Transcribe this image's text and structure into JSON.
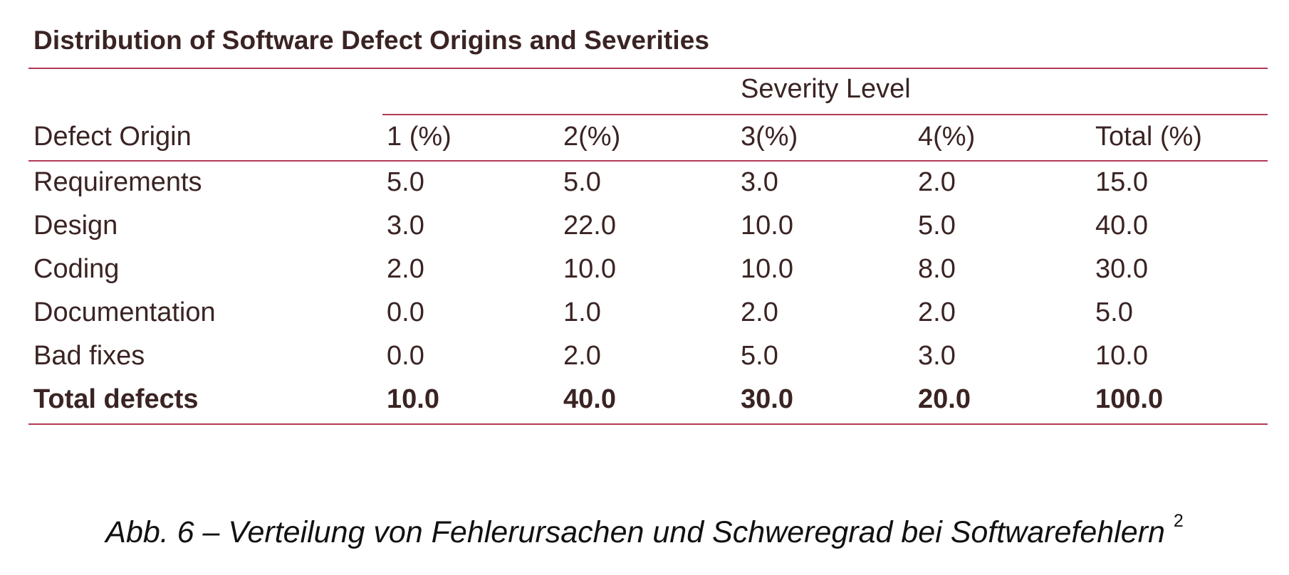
{
  "table": {
    "title": "Distribution of Software Defect Origins and Severities",
    "group_header": "Severity Level",
    "headers": [
      "Defect Origin",
      "1 (%)",
      "2(%)",
      "3(%)",
      "4(%)",
      "Total (%)"
    ],
    "rows": [
      [
        "Requirements",
        "5.0",
        "5.0",
        "3.0",
        "2.0",
        "15.0"
      ],
      [
        "Design",
        "3.0",
        "22.0",
        "10.0",
        "5.0",
        "40.0"
      ],
      [
        "Coding",
        "2.0",
        "10.0",
        "10.0",
        "8.0",
        "30.0"
      ],
      [
        "Documentation",
        "0.0",
        "1.0",
        "2.0",
        "2.0",
        "5.0"
      ],
      [
        "Bad fixes",
        "0.0",
        "2.0",
        "5.0",
        "3.0",
        "10.0"
      ],
      [
        "Total defects",
        "10.0",
        "40.0",
        "30.0",
        "20.0",
        "100.0"
      ]
    ],
    "rule_color": "#b23a55"
  },
  "caption": {
    "text": "Abb. 6 – Verteilung von Fehlerursachen und Schweregrad bei Softwarefehlern",
    "footnote": "2"
  }
}
